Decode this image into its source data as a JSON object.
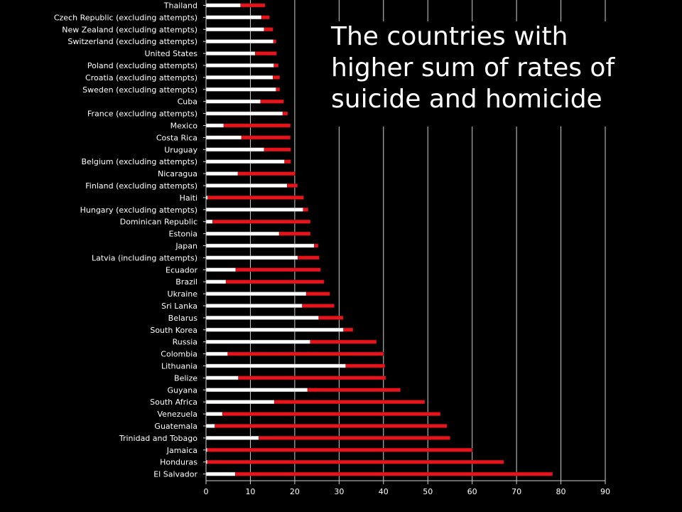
{
  "chart_data": {
    "type": "bar",
    "orientation": "horizontal",
    "stacked": true,
    "title_lines": [
      "The countries with",
      "higher sum of rates of",
      "suicide and homicide"
    ],
    "xlim": [
      0,
      90
    ],
    "xticks": [
      0,
      10,
      20,
      30,
      40,
      50,
      60,
      70,
      80,
      90
    ],
    "grid": true,
    "colors": {
      "suicide": "#ffffff",
      "homicide": "#e8131b",
      "grid": "#d0d0d0",
      "text": "#ffffff",
      "background": "#000000"
    },
    "categories": [
      "Thailand",
      "Czech Republic (excluding attempts)",
      "New Zealand (excluding attempts)",
      "Switzerland (excluding attempts)",
      "United States",
      "Poland (excluding attempts)",
      "Croatia (excluding attempts)",
      "Sweden (excluding attempts)",
      "Cuba",
      "France (excluding attempts)",
      "Mexico",
      "Costa Rica",
      "Uruguay",
      "Belgium (excluding attempts)",
      "Nicaragua",
      "Finland (excluding attempts)",
      "Haiti",
      "Hungary (excluding attempts)",
      "Dominican Republic",
      "Estonia",
      "Japan",
      "Latvia (including attempts)",
      "Ecuador",
      "Brazil",
      "Ukraine",
      "Sri Lanka",
      "Belarus",
      "South Korea",
      "Russia",
      "Colombia",
      "Lithuania",
      "Belize",
      "Guyana",
      "South Africa",
      "Venezuela",
      "Guatemala",
      "Trinidad and Tobago",
      "Jamaica",
      "Honduras",
      "El Salvador"
    ],
    "series": [
      {
        "key": "suicide",
        "values": [
          7.8,
          12.5,
          13.1,
          15.2,
          11.1,
          15.3,
          15.1,
          15.8,
          12.3,
          17.3,
          4.0,
          8.0,
          13.1,
          17.7,
          7.2,
          18.3,
          0.4,
          21.9,
          1.5,
          16.5,
          24.4,
          20.7,
          6.7,
          4.5,
          22.6,
          21.7,
          25.4,
          31.0,
          23.5,
          4.9,
          31.5,
          7.3,
          22.9,
          15.4,
          3.7,
          2.0,
          11.9,
          0.3,
          0.3,
          6.6
        ]
      },
      {
        "key": "homicide",
        "values": [
          5.5,
          1.8,
          2.0,
          0.6,
          4.8,
          1.0,
          1.5,
          0.8,
          5.2,
          1.1,
          15.0,
          11.0,
          6.0,
          1.4,
          12.9,
          2.3,
          21.6,
          1.1,
          22.0,
          7.0,
          0.9,
          4.8,
          19.1,
          22.1,
          5.3,
          7.2,
          5.5,
          2.1,
          14.9,
          35.1,
          8.8,
          33.2,
          20.9,
          33.9,
          49.1,
          52.3,
          43.1,
          59.7,
          66.8,
          71.5
        ]
      }
    ]
  }
}
